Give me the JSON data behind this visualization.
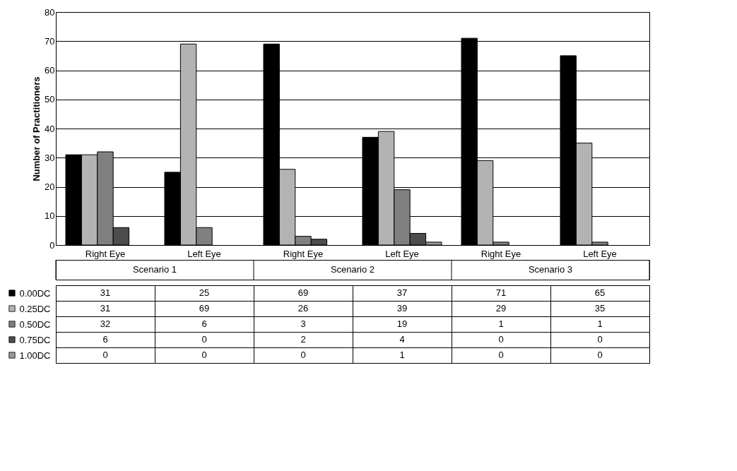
{
  "chart_data": {
    "type": "bar",
    "ylabel": "Number of Practitioners",
    "categories": [
      "Right Eye",
      "Left Eye",
      "Right Eye",
      "Left Eye",
      "Right Eye",
      "Left Eye"
    ],
    "series": [
      {
        "name": "0.00DC",
        "color": "#000000",
        "values": [
          31,
          25,
          69,
          37,
          71,
          65
        ]
      },
      {
        "name": "0.25DC",
        "color": "#b3b3b3",
        "values": [
          31,
          69,
          26,
          39,
          29,
          35
        ]
      },
      {
        "name": "0.50DC",
        "color": "#808080",
        "values": [
          32,
          6,
          3,
          19,
          1,
          1
        ]
      },
      {
        "name": "0.75DC",
        "color": "#4d4d4d",
        "values": [
          6,
          0,
          2,
          4,
          0,
          0
        ]
      },
      {
        "name": "1.00DC",
        "color": "#999999",
        "values": [
          0,
          0,
          0,
          1,
          0,
          0
        ]
      }
    ],
    "ylim": [
      0,
      80
    ],
    "yticks": [
      0,
      10,
      20,
      30,
      40,
      50,
      60,
      70,
      80
    ],
    "grid": "y",
    "legend": "bottom left",
    "data_labels": true,
    "annotations": [
      "Scenario 1",
      "Scenario 2",
      "Scenario 3"
    ]
  }
}
